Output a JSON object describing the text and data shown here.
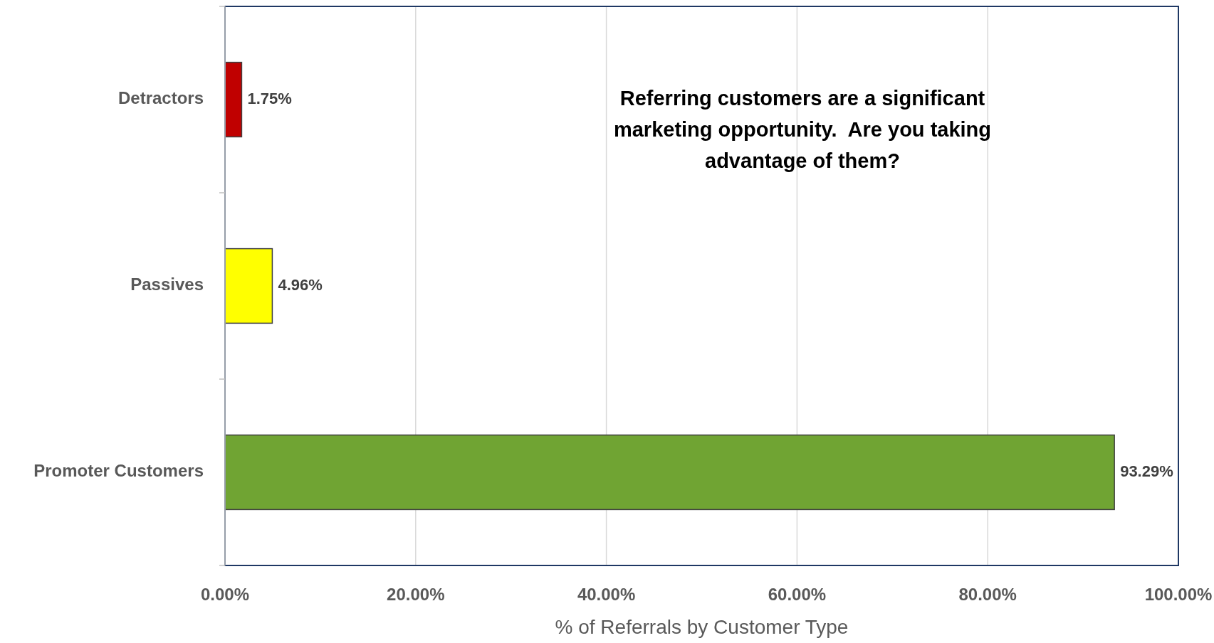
{
  "chart_data": {
    "type": "bar",
    "orientation": "horizontal",
    "xlabel": "% of Referrals by Customer Type",
    "categories": [
      "Detractors",
      "Passives",
      "Promoter Customers"
    ],
    "values": [
      1.75,
      4.96,
      93.29
    ],
    "colors": [
      "#c00000",
      "#ffff00",
      "#70a433"
    ],
    "value_labels": [
      "1.75%",
      "4.96%",
      "93.29%"
    ],
    "xlim": [
      0,
      100
    ],
    "xticks": [
      {
        "value": 0,
        "label": "0.00%"
      },
      {
        "value": 20,
        "label": "20.00%"
      },
      {
        "value": 40,
        "label": "40.00%"
      },
      {
        "value": 60,
        "label": "60.00%"
      },
      {
        "value": 80,
        "label": "80.00%"
      },
      {
        "value": 100,
        "label": "100.00%"
      }
    ],
    "grid": "x",
    "annotations": [
      "Referring customers are a significant marketing opportunity.  Are you taking advantage of them?"
    ]
  }
}
